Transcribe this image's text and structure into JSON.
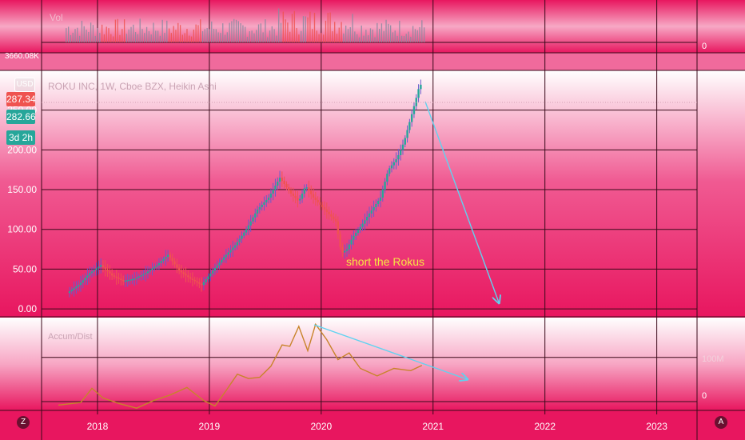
{
  "theme": {
    "accent_up": "#26a69a",
    "accent_down": "#ef5350",
    "annotation": "#f5e642",
    "arrow": "#5fd3f0"
  },
  "volume_panel": {
    "label": "Vol",
    "right_value": "0",
    "left_value": "3660.08K"
  },
  "price_panel": {
    "symbol_title": "ROKU INC, 1W, Cboe BZX, Heikin Ashi",
    "currency_button": "USD",
    "badges": {
      "high": "287.34",
      "last": "282.66",
      "countdown": "3d 2h"
    }
  },
  "indicator_panel": {
    "label": "Accum/Dist",
    "right_labels": [
      "100M",
      "0"
    ]
  },
  "annotation": {
    "text": "short the Rokus"
  },
  "bottom": {
    "left_button": "Z",
    "right_button": "A"
  },
  "chart_data": [
    {
      "type": "bar",
      "title": "Vol",
      "note": "weekly volume histogram",
      "ylim": [
        0,
        3660080
      ]
    },
    {
      "type": "candlestick",
      "title": "ROKU INC, 1W, Cboe BZX, Heikin Ashi",
      "y_ticks": [
        0,
        50,
        100,
        150,
        200,
        250
      ],
      "y_tick_labels": [
        "0.00",
        "50.00",
        "100.00",
        "150.00",
        "200.00",
        "250.00"
      ],
      "ylim": [
        -10,
        300
      ],
      "x_tick_labels": [
        "2018",
        "2019",
        "2020",
        "2021",
        "2022",
        "2023"
      ],
      "x_ticks": [
        2018,
        2019,
        2020,
        2021,
        2022,
        2023
      ],
      "xlim": [
        2017.5,
        2023.36
      ],
      "grid": true,
      "series": [
        {
          "x": [
            2017.75,
            2017.85,
            2017.95,
            2018.05,
            2018.15,
            2018.25,
            2018.35,
            2018.45,
            2018.55,
            2018.65,
            2018.75,
            2018.85,
            2018.95,
            2019.05,
            2019.15,
            2019.25,
            2019.35,
            2019.45,
            2019.55,
            2019.65,
            2019.75,
            2019.82,
            2019.88,
            2019.95,
            2020.05,
            2020.15,
            2020.2,
            2020.25,
            2020.3,
            2020.38,
            2020.45,
            2020.55,
            2020.62,
            2020.7,
            2020.76,
            2020.82,
            2020.86,
            2020.9
          ],
          "y": [
            20,
            30,
            45,
            55,
            42,
            35,
            38,
            45,
            55,
            68,
            48,
            38,
            30,
            48,
            65,
            80,
            100,
            125,
            140,
            165,
            145,
            135,
            155,
            140,
            125,
            110,
            70,
            75,
            90,
            105,
            120,
            140,
            175,
            190,
            210,
            240,
            260,
            282
          ]
        }
      ]
    },
    {
      "type": "line",
      "title": "Accum/Dist",
      "y_tick_labels": [
        "0",
        "100M"
      ],
      "y_ticks": [
        0,
        100
      ],
      "ylim": [
        -20,
        190
      ],
      "series": [
        {
          "x": [
            2017.65,
            2017.85,
            2017.95,
            2018.05,
            2018.2,
            2018.35,
            2018.5,
            2018.65,
            2018.8,
            2018.95,
            2019.05,
            2019.15,
            2019.25,
            2019.35,
            2019.45,
            2019.55,
            2019.65,
            2019.72,
            2019.8,
            2019.88,
            2019.95,
            2020.05,
            2020.15,
            2020.25,
            2020.35,
            2020.5,
            2020.65,
            2020.8,
            2020.9
          ],
          "y": [
            -8,
            -2,
            30,
            8,
            -5,
            -15,
            2,
            15,
            32,
            2,
            -10,
            25,
            62,
            52,
            55,
            80,
            128,
            125,
            170,
            115,
            175,
            140,
            95,
            110,
            75,
            58,
            75,
            70,
            82
          ]
        }
      ]
    }
  ]
}
